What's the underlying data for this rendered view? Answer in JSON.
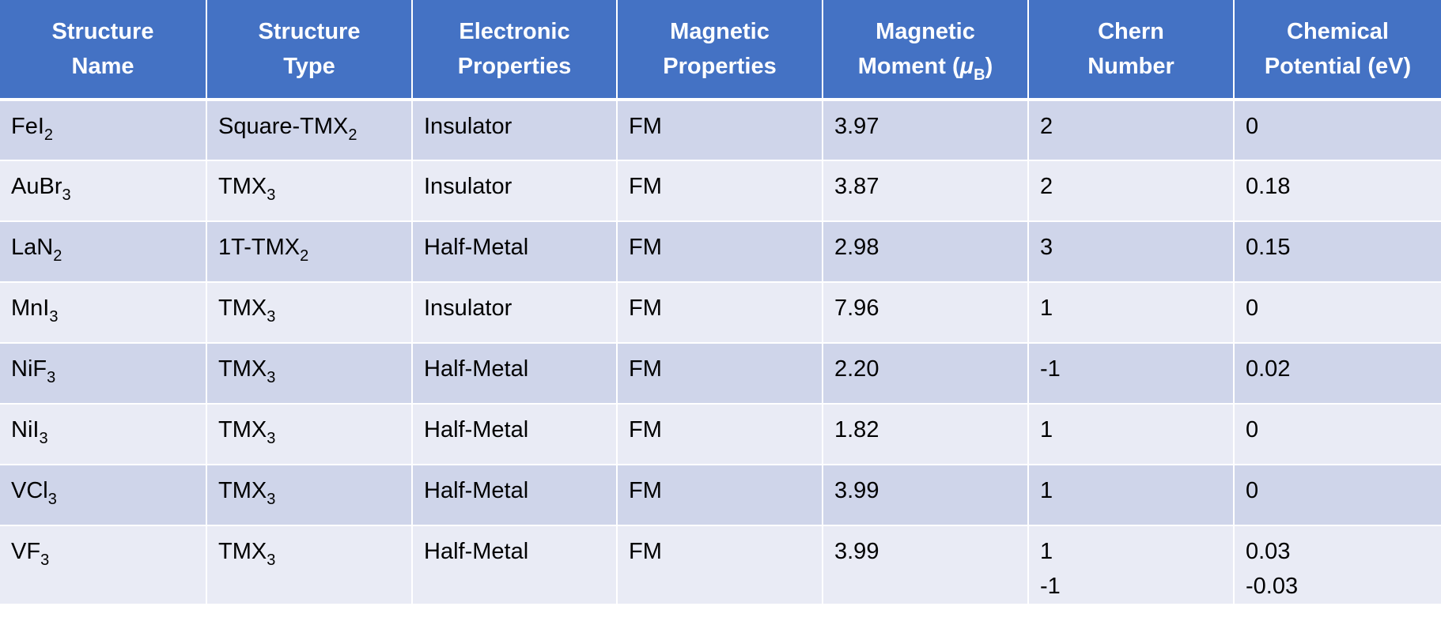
{
  "table": {
    "headers": [
      {
        "line1": "Structure",
        "line2": "Name"
      },
      {
        "line1": "Structure",
        "line2": "Type"
      },
      {
        "line1": "Electronic",
        "line2": "Properties"
      },
      {
        "line1": "Magnetic",
        "line2": "Properties"
      },
      {
        "line1": "Magnetic",
        "line2_prefix": "Moment (",
        "mu": "μ",
        "mu_sub": "B",
        "line2_suffix": ")"
      },
      {
        "line1": "Chern",
        "line2": "Number"
      },
      {
        "line1": "Chemical",
        "line2": "Potential (eV)"
      }
    ],
    "rows": [
      {
        "name": {
          "base": "FeI",
          "sub": "2"
        },
        "type": {
          "base": "Square-TMX",
          "sub": "2"
        },
        "electronic": "Insulator",
        "magnetic": "FM",
        "moment": "3.97",
        "chern": [
          "2"
        ],
        "potential": [
          "0"
        ]
      },
      {
        "name": {
          "base": "AuBr",
          "sub": "3"
        },
        "type": {
          "base": "TMX",
          "sub": "3"
        },
        "electronic": "Insulator",
        "magnetic": "FM",
        "moment": "3.87",
        "chern": [
          "2"
        ],
        "potential": [
          "0.18"
        ]
      },
      {
        "name": {
          "base": "LaN",
          "sub": "2"
        },
        "type": {
          "base": "1T-TMX",
          "sub": "2"
        },
        "electronic": "Half-Metal",
        "magnetic": "FM",
        "moment": "2.98",
        "chern": [
          "3"
        ],
        "potential": [
          "0.15"
        ]
      },
      {
        "name": {
          "base": "MnI",
          "sub": "3"
        },
        "type": {
          "base": "TMX",
          "sub": "3"
        },
        "electronic": "Insulator",
        "magnetic": "FM",
        "moment": "7.96",
        "chern": [
          "1"
        ],
        "potential": [
          "0"
        ]
      },
      {
        "name": {
          "base": "NiF",
          "sub": "3"
        },
        "type": {
          "base": "TMX",
          "sub": "3"
        },
        "electronic": "Half-Metal",
        "magnetic": "FM",
        "moment": "2.20",
        "chern": [
          "-1"
        ],
        "potential": [
          "0.02"
        ]
      },
      {
        "name": {
          "base": "NiI",
          "sub": "3"
        },
        "type": {
          "base": "TMX",
          "sub": "3"
        },
        "electronic": "Half-Metal",
        "magnetic": "FM",
        "moment": "1.82",
        "chern": [
          "1"
        ],
        "potential": [
          "0"
        ]
      },
      {
        "name": {
          "base": "VCl",
          "sub": "3"
        },
        "type": {
          "base": "TMX",
          "sub": "3"
        },
        "electronic": "Half-Metal",
        "magnetic": "FM",
        "moment": "3.99",
        "chern": [
          "1"
        ],
        "potential": [
          "0"
        ]
      },
      {
        "name": {
          "base": "VF",
          "sub": "3"
        },
        "type": {
          "base": "TMX",
          "sub": "3"
        },
        "electronic": "Half-Metal",
        "magnetic": "FM",
        "moment": "3.99",
        "chern": [
          "1",
          "-1"
        ],
        "potential": [
          "0.03",
          "-0.03"
        ]
      }
    ]
  },
  "colors": {
    "header_bg": "#4472c4",
    "row_odd_bg": "#cfd5ea",
    "row_even_bg": "#e9ebf5"
  }
}
